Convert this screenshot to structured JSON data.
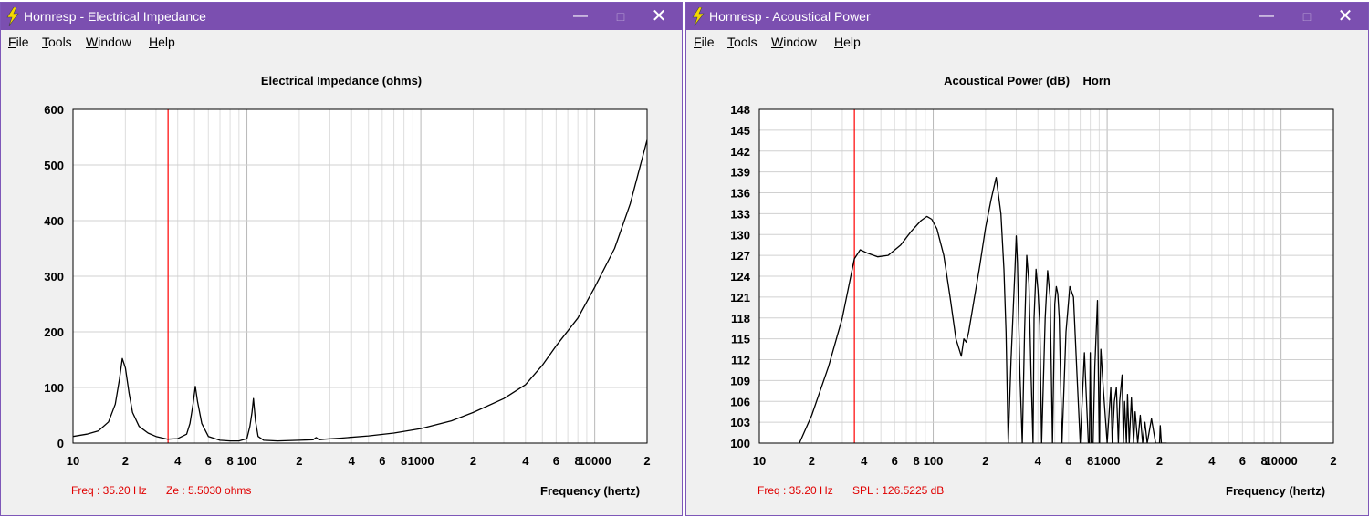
{
  "left_window": {
    "title": "Hornresp - Electrical Impedance",
    "menu": [
      "File",
      "Tools",
      "Window",
      "Help"
    ],
    "chart_title": "Electrical Impedance (ohms)",
    "readout_freq": "Freq : 35.20 Hz",
    "readout_value": "Ze : 5.5030 ohms",
    "xlabel": "Frequency (hertz)"
  },
  "right_window": {
    "title": "Hornresp - Acoustical Power",
    "menu": [
      "File",
      "Tools",
      "Window",
      "Help"
    ],
    "chart_title": "Acoustical Power (dB)    Horn",
    "readout_freq": "Freq : 35.20 Hz",
    "readout_value": "SPL : 126.5225 dB",
    "xlabel": "Frequency (hertz)"
  },
  "colors": {
    "titlebar": "#7b4fb0",
    "cursor": "#ff0000",
    "curve": "#000000",
    "grid": "#c8c8c8",
    "readout": "#e00000"
  },
  "chart_data": [
    {
      "type": "line",
      "title": "Electrical Impedance (ohms)",
      "xlabel": "Frequency (hertz)",
      "xscale": "log",
      "xlim": [
        10,
        20000
      ],
      "ylim": [
        0,
        600
      ],
      "yticks": [
        0,
        100,
        200,
        300,
        400,
        500,
        600
      ],
      "xtick_labels": [
        "10",
        "2",
        "4",
        "6",
        "8",
        "100",
        "2",
        "4",
        "6",
        "8",
        "1000",
        "2",
        "4",
        "6",
        "8",
        "10000",
        "2"
      ],
      "cursor_x": 35.2,
      "series": [
        {
          "x": [
            10,
            12,
            14,
            16,
            17.5,
            18.5,
            19.2,
            20,
            21,
            22,
            24,
            27,
            30,
            35,
            40,
            45,
            47,
            49,
            50.5,
            52,
            55,
            60,
            70,
            80,
            90,
            100,
            104,
            107,
            109,
            112,
            116,
            125,
            150,
            200,
            240,
            250,
            260,
            280,
            350,
            500,
            700,
            1000,
            1500,
            2000,
            3000,
            4000,
            5000,
            6000,
            8000,
            10000,
            13000,
            16000,
            20000
          ],
          "y": [
            12,
            16,
            22,
            38,
            70,
            115,
            152,
            135,
            90,
            55,
            30,
            18,
            12,
            7,
            8,
            16,
            35,
            70,
            102,
            75,
            35,
            12,
            5,
            4,
            4,
            8,
            30,
            55,
            80,
            40,
            12,
            5,
            4,
            5,
            6,
            10,
            6,
            7,
            9,
            13,
            18,
            26,
            40,
            55,
            80,
            105,
            140,
            175,
            225,
            280,
            350,
            430,
            545
          ]
        }
      ]
    },
    {
      "type": "line",
      "title": "Acoustical Power (dB)    Horn",
      "xlabel": "Frequency (hertz)",
      "xscale": "log",
      "xlim": [
        10,
        20000
      ],
      "ylim": [
        100,
        148
      ],
      "yticks": [
        100,
        103,
        106,
        109,
        112,
        115,
        118,
        121,
        124,
        127,
        130,
        133,
        136,
        139,
        142,
        145,
        148
      ],
      "xtick_labels": [
        "10",
        "2",
        "4",
        "6",
        "8",
        "100",
        "2",
        "4",
        "6",
        "8",
        "1000",
        "2",
        "4",
        "6",
        "8",
        "10000",
        "2"
      ],
      "cursor_x": 35.2,
      "series": [
        {
          "x": [
            17,
            20,
            25,
            30,
            35.2,
            38,
            42,
            48,
            55,
            65,
            75,
            85,
            92,
            98,
            105,
            115,
            125,
            135,
            145,
            150,
            155,
            160,
            170,
            185,
            200,
            215,
            230,
            245,
            255,
            262,
            270,
            280,
            295,
            300,
            305,
            315,
            325,
            335,
            345,
            355,
            365,
            375,
            380,
            390,
            400,
            410,
            420,
            440,
            455,
            470,
            485,
            500,
            510,
            520,
            530,
            550,
            580,
            610,
            640,
            670,
            700,
            740,
            780,
            790,
            800,
            810,
            830,
            850,
            880,
            900,
            905,
            910,
            920,
            950,
            1000,
            1050,
            1070,
            1100,
            1130,
            1160,
            1180,
            1220,
            1240,
            1260,
            1290,
            1310,
            1340,
            1380,
            1420,
            1450,
            1500,
            1550,
            1600,
            1650,
            1700,
            1800,
            1900,
            2000,
            2020,
            2050,
            2200
          ],
          "y": [
            100,
            104,
            111,
            118,
            126.5,
            127.8,
            127.3,
            126.8,
            127,
            128.5,
            130.5,
            132,
            132.6,
            132.2,
            130.8,
            127,
            121,
            115,
            112.5,
            115,
            114.5,
            116,
            120,
            125.5,
            131,
            135,
            138.2,
            133,
            125,
            116,
            100,
            112,
            125,
            129.8,
            126,
            110,
            100,
            116,
            127,
            123,
            110,
            100,
            118,
            125,
            122,
            117,
            100,
            118,
            124.8,
            121,
            100,
            120,
            122.5,
            121.5,
            118,
            100,
            116,
            122.5,
            121,
            110,
            100,
            113,
            100,
            100,
            113,
            100,
            100,
            111,
            120.5,
            100,
            100,
            108,
            113.5,
            108,
            100,
            108,
            100,
            106,
            108,
            100,
            106,
            109.8,
            100,
            106,
            100,
            107,
            100,
            106.5,
            100,
            104.5,
            100,
            104,
            100,
            103,
            100,
            103.5,
            100,
            100,
            102.5,
            100,
            100
          ]
        }
      ]
    }
  ]
}
